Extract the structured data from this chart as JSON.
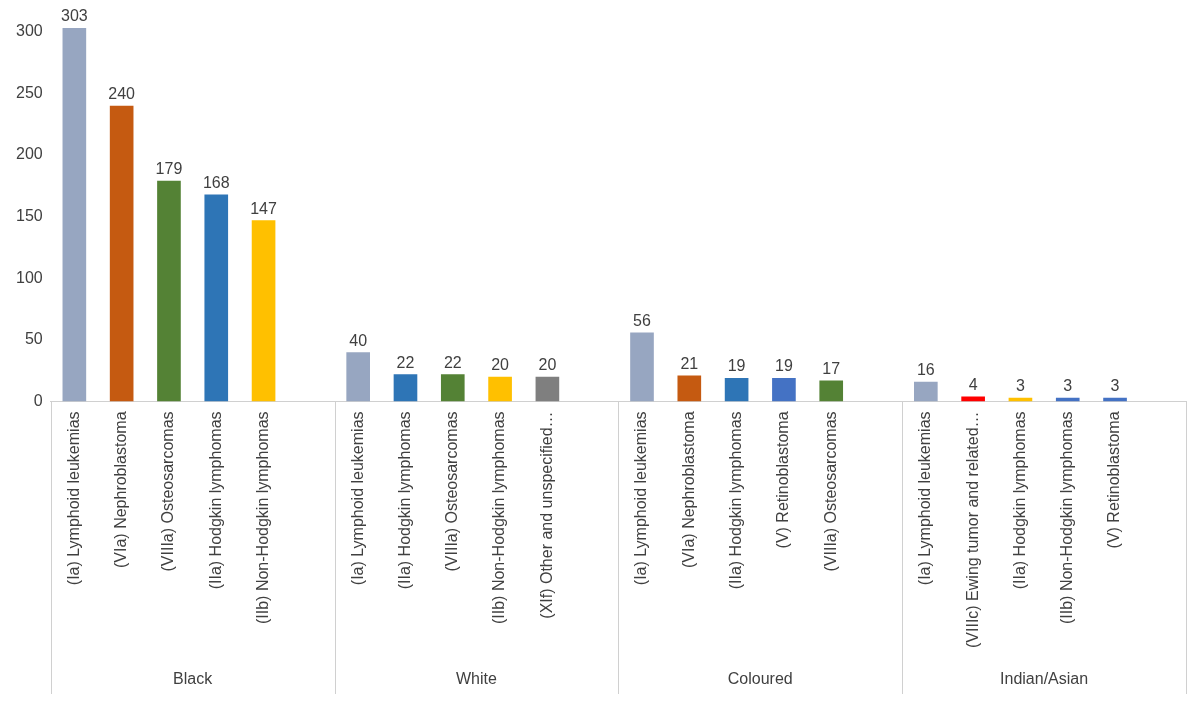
{
  "chart_data": {
    "type": "bar",
    "categories": [
      "(Ia) Lymphoid leukemias",
      "(VIa) Nephroblastoma",
      "(VIIIa) Osteosarcomas",
      "(IIa) Hodgkin lymphomas",
      "(IIb) Non-Hodgkin lymphomas",
      null,
      "(Ia) Lymphoid leukemias",
      "(IIa) Hodgkin lymphomas",
      "(VIIIa) Osteosarcomas",
      "(IIb) Non-Hodgkin lymphomas",
      "(XIf) Other and unspecified…",
      null,
      "(Ia) Lymphoid leukemias",
      "(VIa) Nephroblastoma",
      "(IIa) Hodgkin lymphomas",
      "(V) Retinoblastoma",
      "(VIIIa) Osteosarcomas",
      null,
      "(Ia) Lymphoid leukemias",
      "(VIIIc) Ewing tumor and related…",
      "(IIa) Hodgkin lymphomas",
      "(IIb) Non-Hodgkin lymphomas",
      "(V) Retinoblastoma",
      null
    ],
    "values": [
      303,
      240,
      179,
      168,
      147,
      null,
      40,
      22,
      22,
      20,
      20,
      null,
      56,
      21,
      19,
      19,
      17,
      null,
      16,
      4,
      3,
      3,
      3,
      null
    ],
    "colors": [
      "#97a6c1",
      "#c55a11",
      "#548235",
      "#2e75b6",
      "#ffc000",
      "#ffffff",
      "#97a6c1",
      "#2e75b6",
      "#548235",
      "#ffc000",
      "#7f7f7f",
      "#ffffff",
      "#97a6c1",
      "#c55a11",
      "#2e75b6",
      "#4472c4",
      "#548235",
      "#ffffff",
      "#97a6c1",
      "#ff0000",
      "#ffc000",
      "#4472c4",
      "#4472c4",
      "#ffffff"
    ],
    "annotations": [
      "Black",
      "White",
      "Coloured",
      "Indian/Asian"
    ],
    "ylim": [
      0,
      305
    ],
    "yticks": [
      0,
      50,
      100,
      150,
      200,
      250,
      300
    ],
    "data_labels": true,
    "grid": false,
    "legend": false
  }
}
